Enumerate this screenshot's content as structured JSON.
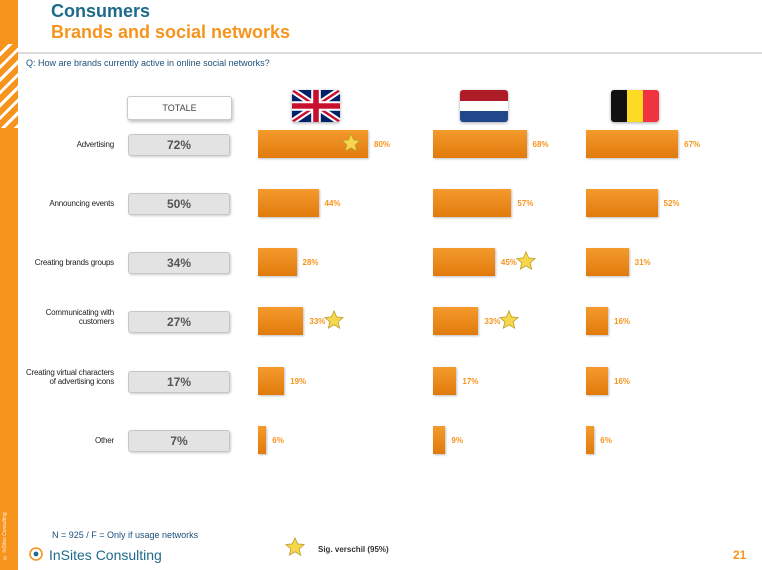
{
  "header": {
    "title": "Consumers",
    "subtitle": "Brands and social networks",
    "question": "Q: How are brands currently active in online social networks?"
  },
  "sidebar_text": "© InSites Consulting",
  "colors": {
    "accent": "#f7941d",
    "title": "#1d6a8b",
    "bar": "#ef8a1a"
  },
  "chart_data": {
    "type": "bar",
    "totale_label": "TOTALE",
    "categories": [
      "Advertising",
      "Announcing events",
      "Creating brands groups",
      "Communicating with customers",
      "Creating virtual characters of advertising icons",
      "Other"
    ],
    "totale": [
      72,
      50,
      34,
      27,
      17,
      7
    ],
    "series": [
      {
        "flag": "united-kingdom",
        "values": [
          80,
          44,
          28,
          33,
          19,
          6
        ],
        "sig": [
          true,
          false,
          false,
          true,
          false,
          false
        ]
      },
      {
        "flag": "netherlands",
        "values": [
          68,
          57,
          45,
          33,
          17,
          9
        ],
        "sig": [
          false,
          false,
          true,
          true,
          false,
          false
        ]
      },
      {
        "flag": "belgium",
        "values": [
          67,
          52,
          31,
          16,
          16,
          6
        ],
        "sig": [
          false,
          false,
          false,
          false,
          false,
          false
        ]
      }
    ],
    "value_suffix": "%",
    "xlim": [
      0,
      100
    ],
    "legend": "Sig. verschil (95%)"
  },
  "footer": {
    "note": "N = 925 / F = Only if usage networks",
    "logo_text": "InSites Consulting",
    "legend": "Sig. verschil (95%)",
    "page_number": "21"
  }
}
